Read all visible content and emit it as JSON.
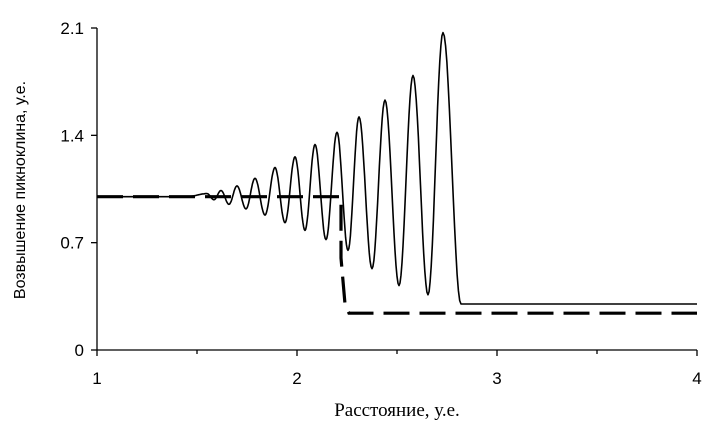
{
  "chart_data": {
    "type": "line",
    "title": "",
    "xlabel": "Расстояние, у.е.",
    "ylabel": "Возвышение пикноклина, у.е.",
    "xlim": [
      1,
      4
    ],
    "ylim": [
      0,
      2.1
    ],
    "xticks": [
      1,
      2,
      3,
      4
    ],
    "xtick_labels": [
      "1",
      "2",
      "3",
      "4"
    ],
    "yticks": [
      0,
      0.7,
      1.4,
      2.1
    ],
    "ytick_labels": [
      "0",
      "0.7",
      "1.4",
      "2.1"
    ],
    "grid": false,
    "legend": "none",
    "series": [
      {
        "style": "solid",
        "color": "#000000",
        "segments": [
          {
            "x": [
              1.0,
              1.45
            ],
            "y": [
              1.0,
              1.0
            ]
          }
        ],
        "peaks": [
          {
            "x": 1.55,
            "max": 1.02,
            "min": 0.98
          },
          {
            "x": 1.62,
            "max": 1.04,
            "min": 0.95
          },
          {
            "x": 1.7,
            "max": 1.07,
            "min": 0.92
          },
          {
            "x": 1.79,
            "max": 1.12,
            "min": 0.88
          },
          {
            "x": 1.89,
            "max": 1.19,
            "min": 0.83
          },
          {
            "x": 1.99,
            "max": 1.26,
            "min": 0.78
          },
          {
            "x": 2.09,
            "max": 1.34,
            "min": 0.72
          },
          {
            "x": 2.2,
            "max": 1.42,
            "min": 0.65
          },
          {
            "x": 2.31,
            "max": 1.52,
            "min": 0.53
          },
          {
            "x": 2.44,
            "max": 1.63,
            "min": 0.42
          },
          {
            "x": 2.58,
            "max": 1.79,
            "min": 0.36
          },
          {
            "x": 2.73,
            "max": 2.07,
            "min": 0.31
          }
        ],
        "tail": {
          "x": [
            2.82,
            4.0
          ],
          "y": [
            0.3,
            0.3
          ]
        }
      },
      {
        "style": "dashed",
        "color": "#000000",
        "x": [
          1.0,
          2.22,
          2.22,
          2.24,
          2.26,
          4.0
        ],
        "y": [
          1.0,
          1.0,
          0.6,
          0.3,
          0.24,
          0.24
        ]
      }
    ]
  }
}
